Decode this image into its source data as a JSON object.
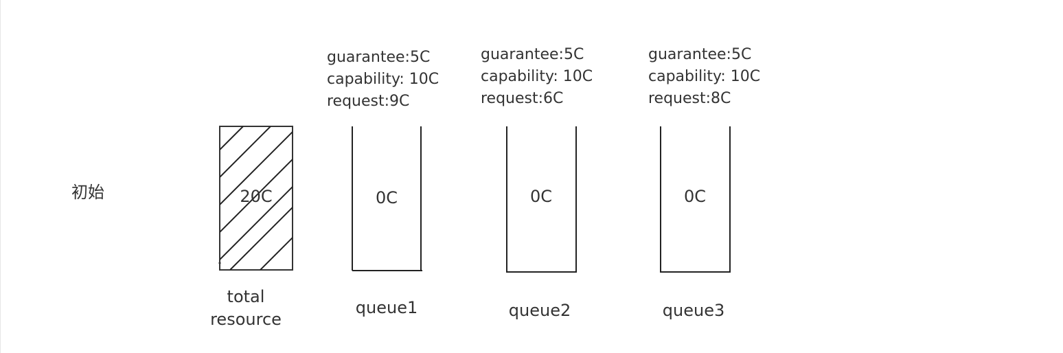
{
  "stage": {
    "label": "初始"
  },
  "total": {
    "value": "20C",
    "caption_line1": "total",
    "caption_line2": "resource"
  },
  "queues": [
    {
      "name": "queue1",
      "guarantee": "guarantee:5C",
      "capability": "capability: 10C",
      "request": "request:9C",
      "allocated": "0C"
    },
    {
      "name": "queue2",
      "guarantee": "guarantee:5C",
      "capability": "capability: 10C",
      "request": "request:6C",
      "allocated": "0C"
    },
    {
      "name": "queue3",
      "guarantee": "guarantee:5C",
      "capability": "capability: 10C",
      "request": "request:8C",
      "allocated": "0C"
    }
  ]
}
